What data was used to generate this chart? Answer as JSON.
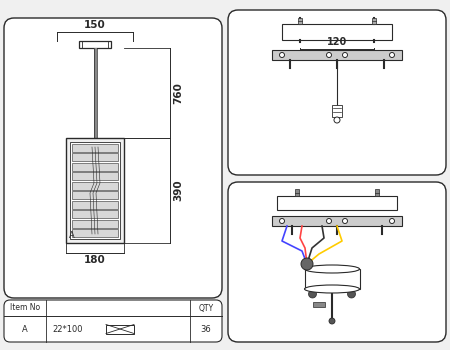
{
  "bg_color": "#f0f0f0",
  "line_color": "#2a2a2a",
  "text_color": "#2a2a2a",
  "dim_150": "150",
  "dim_760": "760",
  "dim_390": "390",
  "dim_180": "180",
  "dim_120": "120",
  "label_a": "A",
  "item_no": "Item No",
  "qty": "QTY",
  "row_a": "A",
  "row_dim": "22*100",
  "row_qty": "36",
  "wire_colors": [
    "#4444ff",
    "#ff4444",
    "#ffcc00",
    "#000000"
  ]
}
